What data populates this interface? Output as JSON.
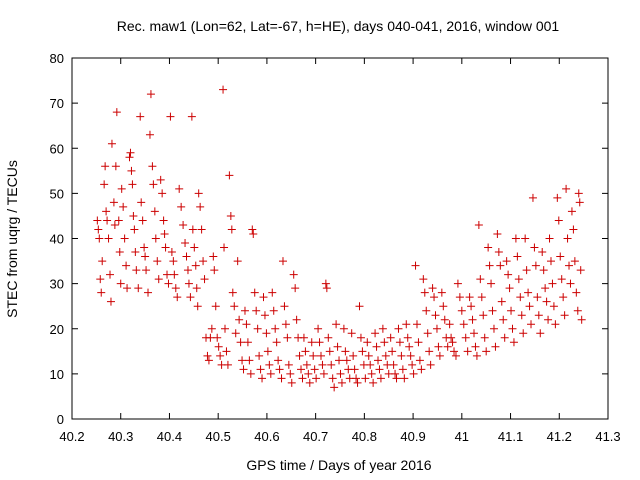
{
  "chart_data": {
    "type": "scatter",
    "title": "Rec. maw1 (Lon=62, Lat=-67, h=HE), days 040-041, 2016, window 001",
    "xlabel": "GPS time / Days of year 2016",
    "ylabel": "STEC from uqrg / TECUs",
    "xlim": [
      40.2,
      41.3
    ],
    "ylim": [
      0,
      80
    ],
    "xticks": [
      "40.2",
      "40.3",
      "40.4",
      "40.5",
      "40.6",
      "40.7",
      "40.8",
      "40.9",
      "41",
      "41.1",
      "41.2",
      "41.3"
    ],
    "yticks": [
      "0",
      "10",
      "20",
      "30",
      "40",
      "50",
      "60",
      "70",
      "80"
    ],
    "grid": false,
    "legend": "none",
    "marker": "plus",
    "color": "#cc0000",
    "points": [
      [
        40.252,
        44
      ],
      [
        40.254,
        42
      ],
      [
        40.256,
        40
      ],
      [
        40.258,
        31
      ],
      [
        40.26,
        28
      ],
      [
        40.262,
        35
      ],
      [
        40.266,
        52
      ],
      [
        40.268,
        56
      ],
      [
        40.27,
        46
      ],
      [
        40.272,
        44
      ],
      [
        40.275,
        40
      ],
      [
        40.278,
        32
      ],
      [
        40.28,
        26
      ],
      [
        40.282,
        61
      ],
      [
        40.286,
        48
      ],
      [
        40.288,
        43
      ],
      [
        40.29,
        56
      ],
      [
        40.292,
        68
      ],
      [
        40.296,
        44
      ],
      [
        40.298,
        37
      ],
      [
        40.3,
        30
      ],
      [
        40.302,
        51
      ],
      [
        40.305,
        47
      ],
      [
        40.308,
        40
      ],
      [
        40.311,
        34
      ],
      [
        40.313,
        29
      ],
      [
        40.318,
        58
      ],
      [
        40.32,
        59
      ],
      [
        40.322,
        55
      ],
      [
        40.324,
        52
      ],
      [
        40.326,
        45
      ],
      [
        40.328,
        42
      ],
      [
        40.33,
        37
      ],
      [
        40.332,
        33
      ],
      [
        40.336,
        29
      ],
      [
        40.34,
        67
      ],
      [
        40.342,
        48
      ],
      [
        40.345,
        44
      ],
      [
        40.348,
        38
      ],
      [
        40.35,
        36
      ],
      [
        40.352,
        33
      ],
      [
        40.356,
        28
      ],
      [
        40.36,
        63
      ],
      [
        40.362,
        72
      ],
      [
        40.365,
        56
      ],
      [
        40.367,
        52
      ],
      [
        40.37,
        46
      ],
      [
        40.372,
        40
      ],
      [
        40.375,
        35
      ],
      [
        40.378,
        31
      ],
      [
        40.382,
        53
      ],
      [
        40.385,
        50
      ],
      [
        40.388,
        44
      ],
      [
        40.39,
        41
      ],
      [
        40.392,
        38
      ],
      [
        40.395,
        32
      ],
      [
        40.398,
        30
      ],
      [
        40.402,
        67
      ],
      [
        40.405,
        37
      ],
      [
        40.408,
        35
      ],
      [
        40.41,
        32
      ],
      [
        40.413,
        29
      ],
      [
        40.416,
        27
      ],
      [
        40.42,
        51
      ],
      [
        40.424,
        47
      ],
      [
        40.428,
        43
      ],
      [
        40.432,
        39
      ],
      [
        40.435,
        36
      ],
      [
        40.438,
        33
      ],
      [
        40.44,
        30
      ],
      [
        40.443,
        27
      ],
      [
        40.446,
        67
      ],
      [
        40.448,
        42
      ],
      [
        40.451,
        38
      ],
      [
        40.454,
        34
      ],
      [
        40.456,
        29
      ],
      [
        40.458,
        25
      ],
      [
        40.46,
        50
      ],
      [
        40.463,
        47
      ],
      [
        40.466,
        42
      ],
      [
        40.469,
        35
      ],
      [
        40.472,
        31
      ],
      [
        40.475,
        18
      ],
      [
        40.478,
        14
      ],
      [
        40.481,
        13
      ],
      [
        40.484,
        18
      ],
      [
        40.487,
        20
      ],
      [
        40.49,
        36
      ],
      [
        40.492,
        33
      ],
      [
        40.495,
        25
      ],
      [
        40.498,
        18
      ],
      [
        40.501,
        16
      ],
      [
        40.504,
        14
      ],
      [
        40.507,
        12
      ],
      [
        40.51,
        73
      ],
      [
        40.512,
        38
      ],
      [
        40.514,
        20
      ],
      [
        40.517,
        15
      ],
      [
        40.52,
        12
      ],
      [
        40.523,
        54
      ],
      [
        40.526,
        45
      ],
      [
        40.528,
        42
      ],
      [
        40.53,
        28
      ],
      [
        40.533,
        25
      ],
      [
        40.536,
        19
      ],
      [
        40.54,
        35
      ],
      [
        40.543,
        22
      ],
      [
        40.546,
        17
      ],
      [
        40.549,
        13
      ],
      [
        40.552,
        11
      ],
      [
        40.555,
        24
      ],
      [
        40.558,
        21
      ],
      [
        40.561,
        17
      ],
      [
        40.564,
        13
      ],
      [
        40.567,
        10
      ],
      [
        40.57,
        42
      ],
      [
        40.572,
        41
      ],
      [
        40.575,
        28
      ],
      [
        40.578,
        24
      ],
      [
        40.581,
        20
      ],
      [
        40.584,
        14
      ],
      [
        40.587,
        11
      ],
      [
        40.59,
        9
      ],
      [
        40.593,
        27
      ],
      [
        40.596,
        23
      ],
      [
        40.599,
        19
      ],
      [
        40.602,
        15
      ],
      [
        40.605,
        12
      ],
      [
        40.608,
        10
      ],
      [
        40.611,
        28
      ],
      [
        40.614,
        24
      ],
      [
        40.617,
        20
      ],
      [
        40.62,
        17
      ],
      [
        40.623,
        13
      ],
      [
        40.626,
        11
      ],
      [
        40.63,
        9
      ],
      [
        40.633,
        35
      ],
      [
        40.636,
        25
      ],
      [
        40.639,
        21
      ],
      [
        40.642,
        18
      ],
      [
        40.645,
        12
      ],
      [
        40.648,
        10
      ],
      [
        40.651,
        8
      ],
      [
        40.655,
        32
      ],
      [
        40.658,
        29
      ],
      [
        40.661,
        22
      ],
      [
        40.664,
        18
      ],
      [
        40.667,
        14
      ],
      [
        40.67,
        11
      ],
      [
        40.673,
        9
      ],
      [
        40.676,
        18
      ],
      [
        40.679,
        15
      ],
      [
        40.682,
        12
      ],
      [
        40.685,
        10
      ],
      [
        40.688,
        8
      ],
      [
        40.692,
        17
      ],
      [
        40.695,
        14
      ],
      [
        40.698,
        11
      ],
      [
        40.701,
        9
      ],
      [
        40.705,
        20
      ],
      [
        40.708,
        17
      ],
      [
        40.711,
        14
      ],
      [
        40.714,
        12
      ],
      [
        40.717,
        10
      ],
      [
        40.721,
        30
      ],
      [
        40.723,
        29
      ],
      [
        40.726,
        18
      ],
      [
        40.729,
        15
      ],
      [
        40.732,
        12
      ],
      [
        40.735,
        9
      ],
      [
        40.738,
        7
      ],
      [
        40.742,
        21
      ],
      [
        40.745,
        16
      ],
      [
        40.748,
        13
      ],
      [
        40.751,
        10
      ],
      [
        40.754,
        8
      ],
      [
        40.758,
        20
      ],
      [
        40.761,
        15
      ],
      [
        40.764,
        13
      ],
      [
        40.767,
        11
      ],
      [
        40.77,
        9
      ],
      [
        40.774,
        19
      ],
      [
        40.777,
        14
      ],
      [
        40.78,
        11
      ],
      [
        40.783,
        9
      ],
      [
        40.786,
        8
      ],
      [
        40.79,
        25
      ],
      [
        40.793,
        18
      ],
      [
        40.796,
        15
      ],
      [
        40.799,
        12
      ],
      [
        40.802,
        9
      ],
      [
        40.806,
        17
      ],
      [
        40.809,
        14
      ],
      [
        40.812,
        12
      ],
      [
        40.815,
        10
      ],
      [
        40.818,
        8
      ],
      [
        40.822,
        19
      ],
      [
        40.825,
        16
      ],
      [
        40.828,
        13
      ],
      [
        40.831,
        11
      ],
      [
        40.834,
        9
      ],
      [
        40.838,
        20
      ],
      [
        40.841,
        17
      ],
      [
        40.844,
        14
      ],
      [
        40.847,
        12
      ],
      [
        40.85,
        10
      ],
      [
        40.854,
        18
      ],
      [
        40.857,
        15
      ],
      [
        40.86,
        12
      ],
      [
        40.863,
        10
      ],
      [
        40.866,
        9
      ],
      [
        40.87,
        20
      ],
      [
        40.873,
        17
      ],
      [
        40.876,
        14
      ],
      [
        40.879,
        11
      ],
      [
        40.882,
        9
      ],
      [
        40.886,
        21
      ],
      [
        40.889,
        18
      ],
      [
        40.892,
        16
      ],
      [
        40.895,
        14
      ],
      [
        40.898,
        12
      ],
      [
        40.901,
        10
      ],
      [
        40.905,
        34
      ],
      [
        40.908,
        21
      ],
      [
        40.911,
        17
      ],
      [
        40.914,
        13
      ],
      [
        40.917,
        11
      ],
      [
        40.921,
        31
      ],
      [
        40.924,
        28
      ],
      [
        40.927,
        24
      ],
      [
        40.93,
        19
      ],
      [
        40.933,
        15
      ],
      [
        40.936,
        12
      ],
      [
        40.94,
        29
      ],
      [
        40.943,
        27
      ],
      [
        40.946,
        23
      ],
      [
        40.949,
        20
      ],
      [
        40.952,
        16
      ],
      [
        40.955,
        14
      ],
      [
        40.959,
        28
      ],
      [
        40.962,
        25
      ],
      [
        40.965,
        22
      ],
      [
        40.968,
        18
      ],
      [
        40.971,
        16
      ],
      [
        40.975,
        21
      ],
      [
        40.978,
        18
      ],
      [
        40.981,
        17
      ],
      [
        40.984,
        15
      ],
      [
        40.988,
        14
      ],
      [
        40.992,
        30
      ],
      [
        40.996,
        27
      ],
      [
        41.0,
        24
      ],
      [
        41.004,
        21
      ],
      [
        41.008,
        18
      ],
      [
        41.012,
        15
      ],
      [
        41.016,
        27
      ],
      [
        41.019,
        25
      ],
      [
        41.022,
        22
      ],
      [
        41.025,
        19
      ],
      [
        41.028,
        16
      ],
      [
        41.031,
        14
      ],
      [
        41.035,
        43
      ],
      [
        41.038,
        31
      ],
      [
        41.041,
        27
      ],
      [
        41.044,
        23
      ],
      [
        41.047,
        18
      ],
      [
        41.05,
        15
      ],
      [
        41.054,
        38
      ],
      [
        41.057,
        34
      ],
      [
        41.06,
        30
      ],
      [
        41.063,
        24
      ],
      [
        41.066,
        20
      ],
      [
        41.069,
        16
      ],
      [
        41.073,
        41
      ],
      [
        41.076,
        37
      ],
      [
        41.079,
        34
      ],
      [
        41.082,
        26
      ],
      [
        41.085,
        22
      ],
      [
        41.088,
        18
      ],
      [
        41.092,
        35
      ],
      [
        41.095,
        32
      ],
      [
        41.098,
        29
      ],
      [
        41.101,
        24
      ],
      [
        41.104,
        20
      ],
      [
        41.107,
        17
      ],
      [
        41.111,
        40
      ],
      [
        41.114,
        36
      ],
      [
        41.117,
        31
      ],
      [
        41.12,
        27
      ],
      [
        41.123,
        23
      ],
      [
        41.126,
        19
      ],
      [
        41.13,
        40
      ],
      [
        41.133,
        33
      ],
      [
        41.136,
        28
      ],
      [
        41.139,
        25
      ],
      [
        41.142,
        21
      ],
      [
        41.146,
        49
      ],
      [
        41.149,
        38
      ],
      [
        41.152,
        34
      ],
      [
        41.155,
        27
      ],
      [
        41.158,
        23
      ],
      [
        41.161,
        19
      ],
      [
        41.165,
        37
      ],
      [
        41.168,
        33
      ],
      [
        41.171,
        29
      ],
      [
        41.174,
        26
      ],
      [
        41.177,
        22
      ],
      [
        41.18,
        40
      ],
      [
        41.183,
        35
      ],
      [
        41.186,
        30
      ],
      [
        41.189,
        25
      ],
      [
        41.192,
        21
      ],
      [
        41.196,
        49
      ],
      [
        41.199,
        44
      ],
      [
        41.202,
        36
      ],
      [
        41.205,
        31
      ],
      [
        41.208,
        27
      ],
      [
        41.211,
        23
      ],
      [
        41.214,
        51
      ],
      [
        41.217,
        40
      ],
      [
        41.22,
        34
      ],
      [
        41.223,
        30
      ],
      [
        41.226,
        46
      ],
      [
        41.229,
        42
      ],
      [
        41.232,
        35
      ],
      [
        41.235,
        28
      ],
      [
        41.238,
        24
      ],
      [
        41.24,
        50
      ],
      [
        41.242,
        48
      ],
      [
        41.244,
        33
      ],
      [
        41.246,
        22
      ]
    ]
  }
}
